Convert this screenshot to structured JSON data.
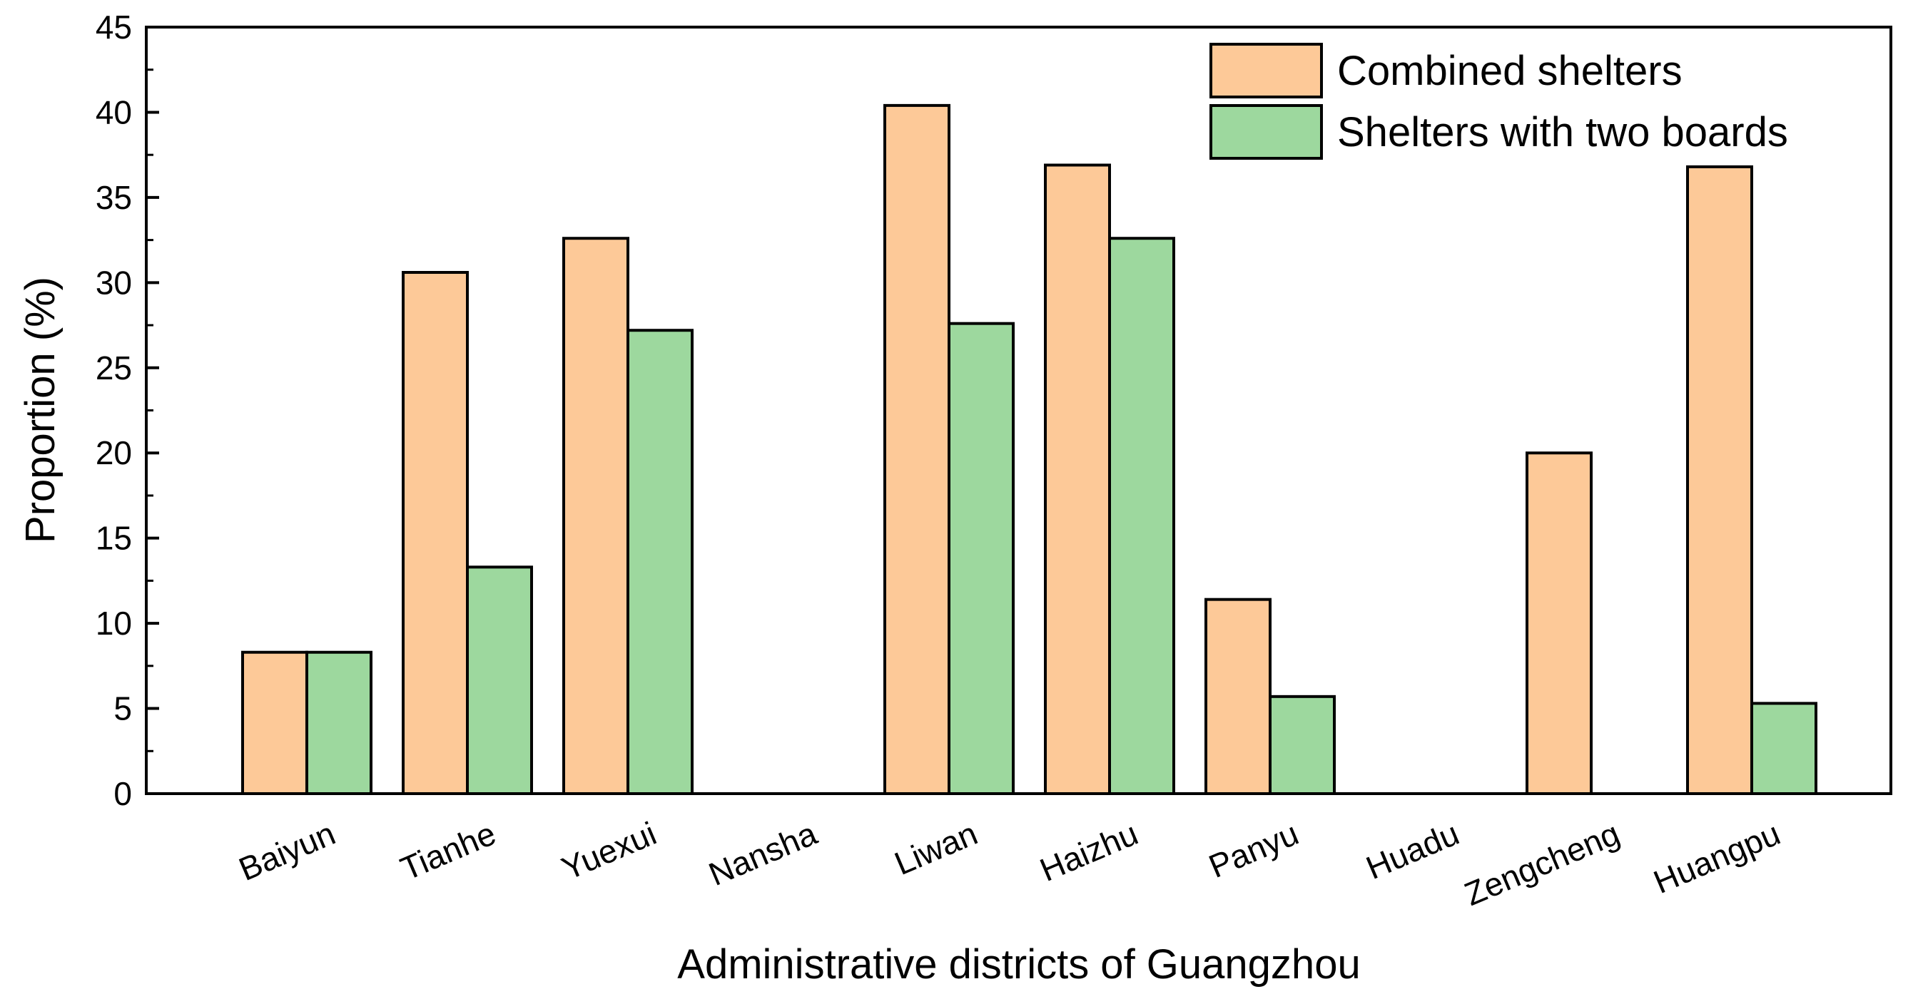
{
  "chart_data": {
    "type": "bar",
    "title": "",
    "xlabel": "Administrative districts of Guangzhou",
    "ylabel": "Proportion (%)",
    "ylim": [
      0,
      45
    ],
    "yticks": [
      "0",
      "5",
      "10",
      "15",
      "20",
      "25",
      "30",
      "35",
      "40",
      "45"
    ],
    "grid": false,
    "legend_position": "top-right",
    "categories": [
      "Baiyun",
      "Tianhe",
      "Yuexui",
      "Nansha",
      "Liwan",
      "Haizhu",
      "Panyu",
      "Huadu",
      "Zengcheng",
      "Huangpu"
    ],
    "series": [
      {
        "name": "Combined shelters",
        "color": "#FDC998",
        "values": [
          8.3,
          30.6,
          32.6,
          0,
          40.4,
          36.9,
          11.4,
          0,
          20.0,
          36.8
        ]
      },
      {
        "name": "Shelters with two boards",
        "color": "#9DD89E",
        "values": [
          8.3,
          13.3,
          27.2,
          0,
          27.6,
          32.6,
          5.7,
          0,
          0,
          5.3
        ]
      }
    ]
  }
}
